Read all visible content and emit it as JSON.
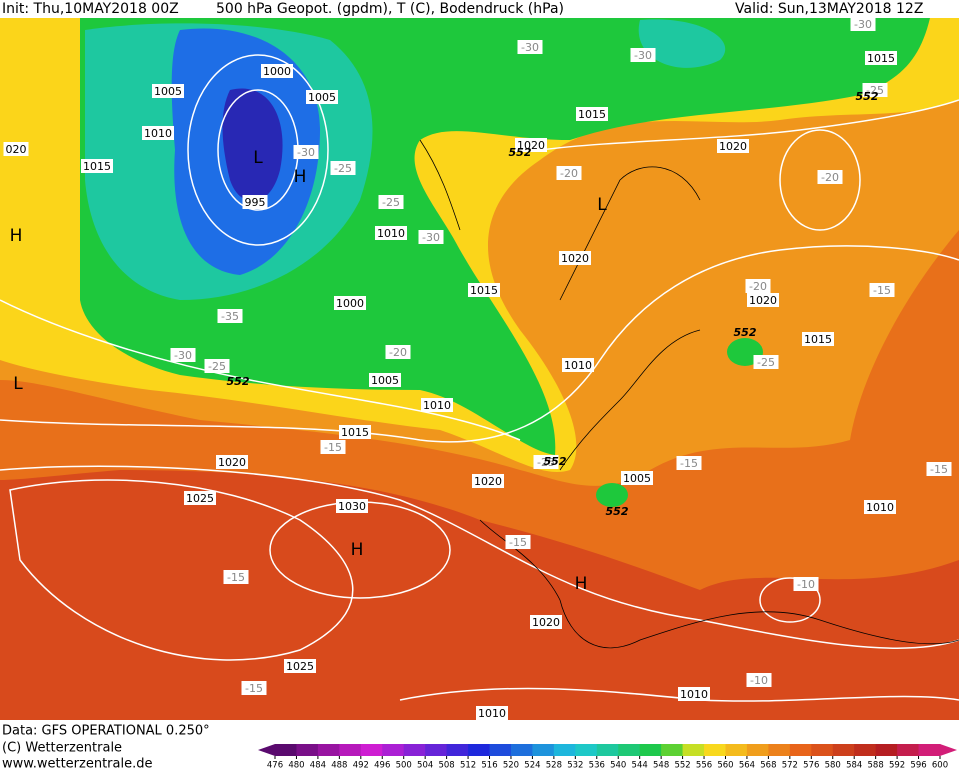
{
  "header": {
    "init": "Init: Thu,10MAY2018 00Z",
    "product": "500 hPa Geopot. (gpdm), T (C), Bodendruck (hPa)",
    "valid": "Valid: Sun,13MAY2018 12Z"
  },
  "footer": {
    "data": "Data: GFS OPERATIONAL 0.250°",
    "copyright": "(C) Wetterzentrale",
    "url": "www.wetterzentrale.de"
  },
  "colorbar": {
    "ticks": [
      476,
      480,
      484,
      488,
      492,
      496,
      500,
      504,
      508,
      512,
      516,
      520,
      524,
      528,
      532,
      536,
      540,
      544,
      548,
      552,
      556,
      560,
      564,
      568,
      572,
      576,
      580,
      584,
      588,
      592,
      596,
      600
    ]
  },
  "map": {
    "pressure_labels": [
      "1000",
      "1005",
      "1005",
      "1010",
      "1015",
      "020",
      "995",
      "1010",
      "1015",
      "1000",
      "1005",
      "1010",
      "1015",
      "1020",
      "1025",
      "1030",
      "1020",
      "1020",
      "1020",
      "1020",
      "1020",
      "1015",
      "1015",
      "1015",
      "1010",
      "1005",
      "1020",
      "1025",
      "1010",
      "1010",
      "1010"
    ],
    "temperature_labels": [
      "-30",
      "-30",
      "-30",
      "-25",
      "-30",
      "-25",
      "-25",
      "-30",
      "-20",
      "-20",
      "-20",
      "-15",
      "-35",
      "-30",
      "-25",
      "-20",
      "-25",
      "-15",
      "-25",
      "-15",
      "-15",
      "-15",
      "-15",
      "-10",
      "-15",
      "-10"
    ],
    "height_labels": [
      "552",
      "552",
      "552",
      "552",
      "552",
      "552"
    ],
    "centers": [
      "L",
      "H",
      "L",
      "H",
      "L",
      "H",
      "H"
    ]
  }
}
